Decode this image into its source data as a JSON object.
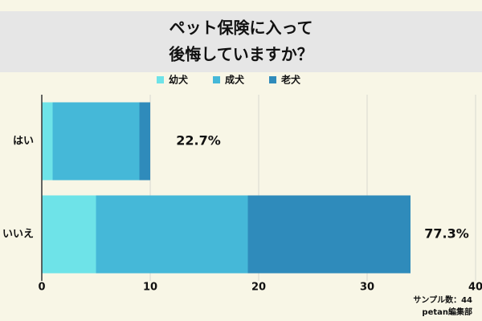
{
  "chart_data": {
    "type": "bar",
    "orientation": "horizontal",
    "stacked": true,
    "title_lines": [
      "ペット保険に入って",
      "後悔していますか？"
    ],
    "categories": [
      "はい",
      "いいえ"
    ],
    "series": [
      {
        "name": "幼犬",
        "color": "#6ee3e8",
        "values": [
          1,
          5
        ]
      },
      {
        "name": "成犬",
        "color": "#45b8d8",
        "values": [
          8,
          14
        ]
      },
      {
        "name": "老犬",
        "color": "#2f8bbb",
        "values": [
          1,
          15
        ]
      }
    ],
    "share_labels": [
      {
        "value": 22.7,
        "label": "22.7%"
      },
      {
        "value": 77.3,
        "label": "77.3%"
      }
    ],
    "xlim": [
      0,
      40
    ],
    "xticks": [
      0,
      10,
      20,
      30,
      40
    ],
    "grid": true,
    "notes": [
      "サンプル数：44",
      "petan編集部"
    ]
  }
}
